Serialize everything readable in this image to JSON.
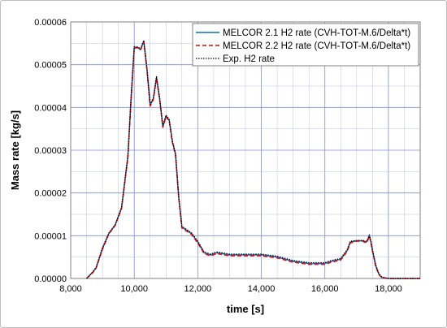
{
  "chart_data": {
    "type": "line",
    "title": "",
    "xlabel": "time [s]",
    "ylabel": "Mass rate [kg/s]",
    "xlim": [
      8000,
      19000
    ],
    "ylim": [
      0,
      6e-05
    ],
    "x_ticks": [
      8000,
      10000,
      12000,
      14000,
      16000,
      18000
    ],
    "x_tick_labels": [
      "8,000",
      "10,000",
      "12,000",
      "14,000",
      "16,000",
      "18,000"
    ],
    "y_ticks": [
      0,
      1e-05,
      2e-05,
      3e-05,
      4e-05,
      5e-05,
      6e-05
    ],
    "y_tick_labels": [
      "0.00000",
      "0.00001",
      "0.00002",
      "0.00003",
      "0.00004",
      "0.00005",
      "0.00006"
    ],
    "grid": true,
    "legend_position": "top-right",
    "series": [
      {
        "name": "MELCOR 2.1 H2 rate (CVH-TOT-M.6/Delta*t)",
        "color": "#0070c0",
        "style": "solid",
        "x": [
          8500,
          8700,
          8800,
          9000,
          9200,
          9400,
          9600,
          9800,
          9900,
          10000,
          10100,
          10200,
          10300,
          10400,
          10500,
          10600,
          10700,
          10800,
          10900,
          11000,
          11100,
          11200,
          11300,
          11400,
          11500,
          11600,
          11800,
          12000,
          12200,
          12400,
          12600,
          13000,
          13500,
          13800,
          14000,
          14500,
          15000,
          15500,
          15800,
          16000,
          16200,
          16500,
          16700,
          16800,
          17000,
          17200,
          17300,
          17350,
          17400,
          17450,
          17500,
          17600,
          17700,
          17800,
          18000,
          18200,
          18500,
          19000
        ],
        "y": [
          0,
          1.5e-06,
          2.5e-06,
          7e-06,
          1.05e-05,
          1.25e-05,
          1.65e-05,
          2.85e-05,
          4.2e-05,
          5.4e-05,
          5.4e-05,
          5.35e-05,
          5.55e-05,
          4.9e-05,
          4.05e-05,
          4.2e-05,
          4.7e-05,
          4.2e-05,
          3.55e-05,
          3.8e-05,
          3.7e-05,
          3.2e-05,
          2.9e-05,
          1.9e-05,
          1.2e-05,
          1.15e-05,
          1.05e-05,
          8.5e-06,
          6e-06,
          5.5e-06,
          6e-06,
          5.5e-06,
          5.5e-06,
          5.5e-06,
          5.5e-06,
          5e-06,
          4e-06,
          3.5e-06,
          3.5e-06,
          3.5e-06,
          4e-06,
          4.5e-06,
          6.5e-06,
          8.5e-06,
          8.8e-06,
          8.8e-06,
          8.5e-06,
          9e-06,
          1e-05,
          8.5e-06,
          6.5e-06,
          3e-06,
          1e-06,
          2e-07,
          0,
          0,
          0,
          0
        ]
      },
      {
        "name": "MELCOR 2.2 H2 rate (CVH-TOT-M.6/Delta*t)",
        "color": "#ff0000",
        "style": "dashed",
        "x": [
          8500,
          8700,
          8800,
          9000,
          9200,
          9400,
          9600,
          9800,
          9900,
          10000,
          10100,
          10200,
          10300,
          10400,
          10500,
          10600,
          10700,
          10800,
          10900,
          11000,
          11100,
          11200,
          11300,
          11400,
          11500,
          11600,
          11800,
          12000,
          12200,
          12400,
          12600,
          13000,
          13500,
          13800,
          14000,
          14500,
          15000,
          15500,
          15800,
          16000,
          16200,
          16500,
          16700,
          16800,
          17000,
          17200,
          17300,
          17350,
          17400,
          17450,
          17500,
          17600,
          17700,
          17800,
          18000,
          18200,
          18500,
          19000
        ],
        "y": [
          0,
          1.4e-06,
          2.4e-06,
          6.8e-06,
          1.04e-05,
          1.24e-05,
          1.63e-05,
          2.82e-05,
          4.15e-05,
          5.38e-05,
          5.4e-05,
          5.35e-05,
          5.53e-05,
          4.88e-05,
          4.03e-05,
          4.18e-05,
          4.68e-05,
          4.18e-05,
          3.53e-05,
          3.78e-05,
          3.68e-05,
          3.18e-05,
          2.88e-05,
          1.88e-05,
          1.18e-05,
          1.13e-05,
          1.03e-05,
          8.3e-06,
          5.8e-06,
          5.3e-06,
          5.8e-06,
          5.3e-06,
          5.3e-06,
          5.3e-06,
          5.3e-06,
          4.8e-06,
          3.8e-06,
          3.3e-06,
          3.3e-06,
          3.3e-06,
          3.8e-06,
          4.3e-06,
          6.3e-06,
          8.3e-06,
          8.7e-06,
          8.7e-06,
          8.3e-06,
          8.9e-06,
          9.9e-06,
          8.3e-06,
          6.3e-06,
          2.8e-06,
          9e-07,
          2e-07,
          0,
          0,
          0,
          0
        ]
      },
      {
        "name": "Exp. H2 rate",
        "color": "#000000",
        "style": "dotted",
        "x": [
          8500,
          8700,
          8800,
          9000,
          9200,
          9400,
          9600,
          9800,
          9900,
          10000,
          10100,
          10200,
          10300,
          10400,
          10500,
          10600,
          10700,
          10800,
          10900,
          11000,
          11100,
          11200,
          11300,
          11400,
          11500,
          11600,
          11800,
          12000,
          12200,
          12400,
          12600,
          13000,
          13500,
          13800,
          14000,
          14500,
          15000,
          15500,
          15800,
          16000,
          16200,
          16500,
          16700,
          16800,
          17000,
          17200,
          17300,
          17350,
          17400,
          17450,
          17500,
          17600,
          17700,
          17800,
          18000,
          18200,
          18500,
          19000
        ],
        "y": [
          0,
          1.6e-06,
          2.6e-06,
          7.2e-06,
          1.06e-05,
          1.26e-05,
          1.66e-05,
          2.88e-05,
          4.25e-05,
          5.42e-05,
          5.42e-05,
          5.37e-05,
          5.57e-05,
          4.92e-05,
          4.07e-05,
          4.22e-05,
          4.72e-05,
          4.22e-05,
          3.57e-05,
          3.82e-05,
          3.72e-05,
          3.22e-05,
          2.92e-05,
          1.92e-05,
          1.22e-05,
          1.17e-05,
          1.07e-05,
          8.7e-06,
          6.2e-06,
          5.7e-06,
          6.2e-06,
          5.7e-06,
          5.7e-06,
          5.7e-06,
          5.7e-06,
          5.2e-06,
          4.2e-06,
          3.7e-06,
          3.7e-06,
          3.7e-06,
          4.2e-06,
          4.7e-06,
          6.7e-06,
          8.7e-06,
          8.9e-06,
          8.9e-06,
          8.7e-06,
          9.2e-06,
          1.02e-05,
          8.7e-06,
          6.7e-06,
          3.2e-06,
          1.1e-06,
          3e-07,
          0,
          0,
          0,
          0
        ]
      }
    ]
  }
}
